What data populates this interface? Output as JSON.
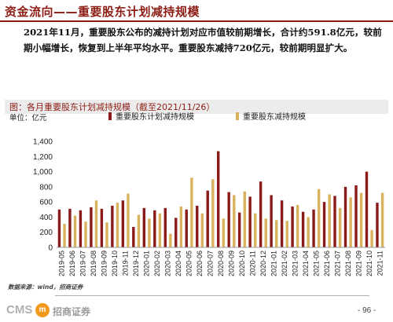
{
  "header": {
    "title": "资金流向——重要股东计划减持规模"
  },
  "summary": "2021年11月，重要股东公布的减持计划对应市值较前期增长，合计约591.8亿元，较前期小幅增长，恢复到上半年平均水平。重要股东减持720亿元，较前期明显扩大。",
  "figure": {
    "title": "图：各月重要股东计划减持规模（截至2021/11/26）",
    "unit_label": "单位：亿元"
  },
  "chart_data": {
    "type": "bar",
    "categories": [
      "2019-05",
      "2019-06",
      "2019-07",
      "2019-08",
      "2019-09",
      "2019-10",
      "2019-11",
      "2019-12",
      "2020-01",
      "2020-02",
      "2020-03",
      "2020-04",
      "2020-05",
      "2020-06",
      "2020-07",
      "2020-08",
      "2020-09",
      "2020-10",
      "2020-11",
      "2020-12",
      "2021-01",
      "2021-02",
      "2021-03",
      "2021-04",
      "2021-05",
      "2021-06",
      "2021-07",
      "2021-08",
      "2021-09",
      "2021-10",
      "2021-11"
    ],
    "series": [
      {
        "name": "重要股东计划减持规模",
        "color": "#8b1a1a",
        "values": [
          500,
          510,
          490,
          530,
          510,
          550,
          620,
          270,
          520,
          490,
          520,
          390,
          500,
          550,
          750,
          1270,
          730,
          460,
          670,
          870,
          690,
          620,
          540,
          470,
          500,
          600,
          680,
          800,
          820,
          1000,
          590
        ]
      },
      {
        "name": "重要股东减持规模",
        "color": "#d8b25c",
        "values": [
          310,
          420,
          340,
          620,
          330,
          590,
          710,
          430,
          380,
          450,
          180,
          540,
          920,
          450,
          900,
          380,
          690,
          740,
          450,
          380,
          360,
          350,
          560,
          400,
          770,
          700,
          520,
          660,
          720,
          230,
          720
        ]
      }
    ],
    "ylim": [
      0,
      1400
    ],
    "yticks": [
      0,
      200,
      400,
      600,
      800,
      1000,
      1200,
      1400
    ],
    "legend_position": "top",
    "grid": false
  },
  "source": "数据来源：wind，招商证券",
  "footer": {
    "logo_text": "CMS",
    "logo_mark_text": "m",
    "company": "招商证券",
    "page": "- 96 -"
  }
}
